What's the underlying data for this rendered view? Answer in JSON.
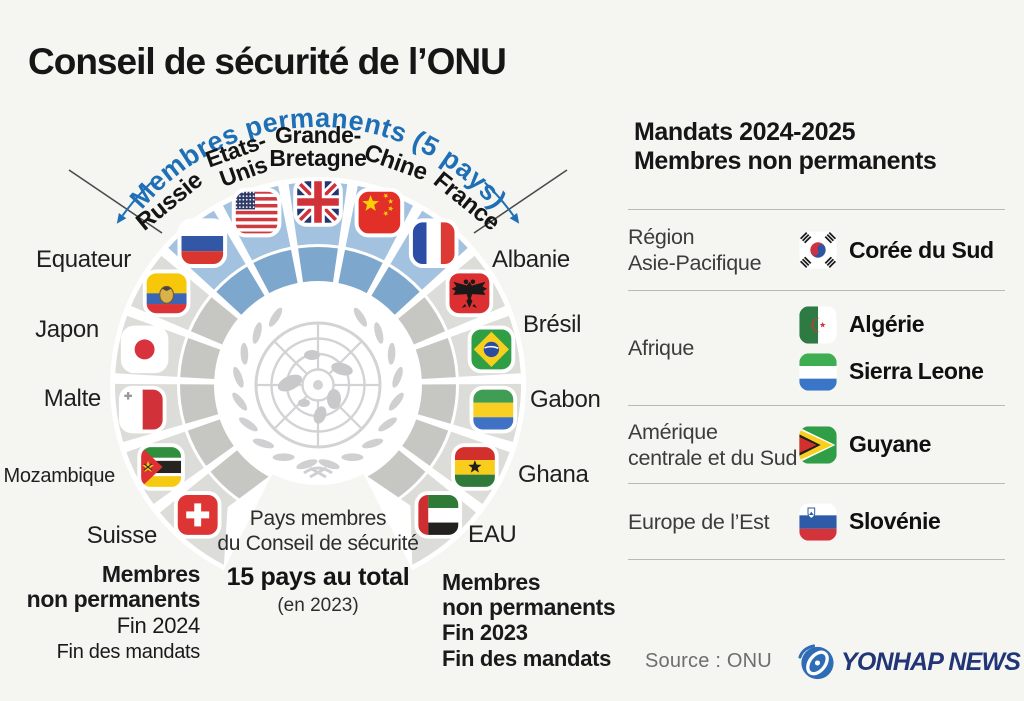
{
  "title": "Conseil de sécurité de l’ONU",
  "arc": {
    "banner": "Membres permanents (5 pays)",
    "permanent": [
      {
        "country": "Russie",
        "label_lines": [
          "Russie"
        ],
        "flag": "russia"
      },
      {
        "country": "Etats-Unis",
        "label_lines": [
          "Etats-",
          "Unis"
        ],
        "flag": "usa"
      },
      {
        "country": "Grande-Bretagne",
        "label_lines": [
          "Grande-",
          "Bretagne"
        ],
        "flag": "uk"
      },
      {
        "country": "Chine",
        "label_lines": [
          "Chine"
        ],
        "flag": "china"
      },
      {
        "country": "France",
        "label_lines": [
          "France"
        ],
        "flag": "france"
      }
    ],
    "left_members": [
      {
        "country": "Equateur",
        "flag": "ecuador"
      },
      {
        "country": "Japon",
        "flag": "japan"
      },
      {
        "country": "Malte",
        "flag": "malta"
      },
      {
        "country": "Mozambique",
        "flag": "mozambique"
      },
      {
        "country": "Suisse",
        "flag": "switzerland"
      }
    ],
    "right_members": [
      {
        "country": "Albanie",
        "flag": "albania"
      },
      {
        "country": "Brésil",
        "flag": "brazil"
      },
      {
        "country": "Gabon",
        "flag": "gabon"
      },
      {
        "country": "Ghana",
        "flag": "ghana"
      },
      {
        "country": "EAU",
        "flag": "uae"
      }
    ],
    "center": {
      "line1": "Pays membres",
      "line2": "du Conseil de sécurité",
      "total": "15 pays au total",
      "year": "(en 2023)"
    }
  },
  "footnotes": {
    "left": {
      "t1": "Membres",
      "t2": "non permanents",
      "end": "Fin 2024",
      "label": "Fin des mandats"
    },
    "right": {
      "t1": "Membres",
      "t2": "non permanents",
      "end": "Fin 2023",
      "label": "Fin des mandats"
    }
  },
  "panel": {
    "title_line1": "Mandats 2024-2025",
    "title_line2": "Membres non permanents",
    "rows": [
      {
        "region_lines": [
          "Région",
          "Asie-Pacifique"
        ],
        "countries": [
          {
            "name": "Corée du Sud",
            "flag": "southkorea"
          }
        ]
      },
      {
        "region_lines": [
          "Afrique"
        ],
        "countries": [
          {
            "name": "Algérie",
            "flag": "algeria"
          },
          {
            "name": "Sierra Leone",
            "flag": "sierraleone"
          }
        ]
      },
      {
        "region_lines": [
          "Amérique",
          "centrale et du Sud"
        ],
        "countries": [
          {
            "name": "Guyane",
            "flag": "guyana"
          }
        ]
      },
      {
        "region_lines": [
          "Europe de l’Est"
        ],
        "countries": [
          {
            "name": "Slovénie",
            "flag": "slovenia"
          }
        ]
      }
    ]
  },
  "footer": {
    "source": "Source : ONU",
    "agency": "YONHAP NEWS"
  },
  "colors": {
    "background": "#f5f5f2",
    "banner_blue": "#1e6fb5",
    "permanent_outer": "#a3c2df",
    "permanent_inner": "#7ea7cd",
    "nonpermanent_outer": "#dcdcd9",
    "nonpermanent_inner": "#c6c6c3",
    "emblem_gray": "#d3d3d5",
    "line_dark": "#4b4b4b",
    "logo_navy": "#223577",
    "logo_blue": "#2e6cb5"
  }
}
